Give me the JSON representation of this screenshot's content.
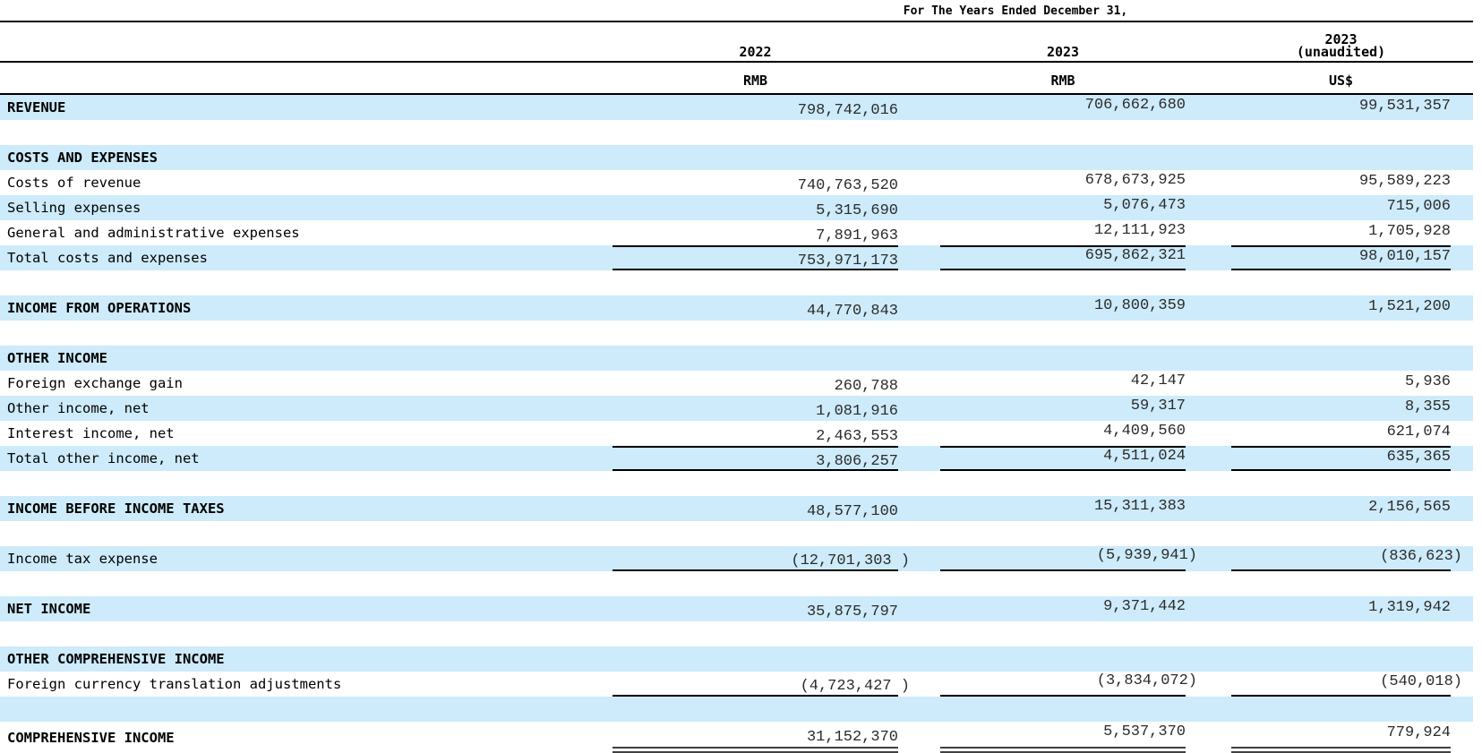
{
  "header": {
    "period_title": "For The Years Ended December 31,",
    "columns": [
      {
        "year": "2022",
        "year_note": "",
        "currency": "RMB"
      },
      {
        "year": "2023",
        "year_note": "",
        "currency": "RMB"
      },
      {
        "year": "2023",
        "year_note": "(unaudited)",
        "currency": "US$"
      }
    ]
  },
  "colors": {
    "band_blue": "#CDEBFA",
    "rule_black": "#000000",
    "double_rule_gray": "#404040"
  },
  "table": {
    "rows": [
      {
        "label": "REVENUE",
        "bold": true,
        "values": [
          "798,742,016",
          "706,662,680",
          "99,531,357"
        ]
      },
      {
        "label": "",
        "values": [
          "",
          "",
          ""
        ]
      },
      {
        "label": "COSTS AND EXPENSES",
        "bold": true,
        "values": [
          "",
          "",
          ""
        ]
      },
      {
        "label": "Costs of revenue",
        "values": [
          "740,763,520",
          "678,673,925",
          "95,589,223"
        ]
      },
      {
        "label": "Selling expenses",
        "values": [
          "5,315,690",
          "5,076,473",
          "715,006"
        ]
      },
      {
        "label": "General and administrative expenses",
        "values": [
          "7,891,963",
          "12,111,923",
          "1,705,928"
        ]
      },
      {
        "label": "Total costs and expenses",
        "values": [
          "753,971,173",
          "695,862,321",
          "98,010,157"
        ],
        "rules": "top-bottom"
      },
      {
        "label": "",
        "values": [
          "",
          "",
          ""
        ]
      },
      {
        "label": "INCOME FROM OPERATIONS",
        "bold": true,
        "values": [
          "44,770,843",
          "10,800,359",
          "1,521,200"
        ]
      },
      {
        "label": "",
        "values": [
          "",
          "",
          ""
        ]
      },
      {
        "label": "OTHER INCOME",
        "bold": true,
        "values": [
          "",
          "",
          ""
        ]
      },
      {
        "label": "Foreign exchange gain",
        "values": [
          "260,788",
          "42,147",
          "5,936"
        ]
      },
      {
        "label": "Other income, net",
        "values": [
          "1,081,916",
          "59,317",
          "8,355"
        ]
      },
      {
        "label": "Interest income, net",
        "values": [
          "2,463,553",
          "4,409,560",
          "621,074"
        ]
      },
      {
        "label": "Total other income, net",
        "values": [
          "3,806,257",
          "4,511,024",
          "635,365"
        ],
        "rules": "top-bottom"
      },
      {
        "label": "",
        "values": [
          "",
          "",
          ""
        ]
      },
      {
        "label": "INCOME BEFORE INCOME TAXES",
        "bold": true,
        "values": [
          "48,577,100",
          "15,311,383",
          "2,156,565"
        ]
      },
      {
        "label": "",
        "values": [
          "",
          "",
          ""
        ]
      },
      {
        "label": "Income tax expense",
        "values": [
          "(12,701,303 )",
          "(5,939,941)",
          "(836,623)"
        ],
        "rules": "bottom"
      },
      {
        "label": "",
        "values": [
          "",
          "",
          ""
        ]
      },
      {
        "label": "NET INCOME",
        "bold": true,
        "values": [
          "35,875,797",
          "9,371,442",
          "1,319,942"
        ]
      },
      {
        "label": "",
        "values": [
          "",
          "",
          ""
        ]
      },
      {
        "label": "OTHER COMPREHENSIVE INCOME",
        "bold": true,
        "values": [
          "",
          "",
          ""
        ]
      },
      {
        "label": "Foreign currency translation adjustments",
        "values": [
          "(4,723,427 )",
          "(3,834,072)",
          "(540,018)"
        ],
        "rules": "bottom"
      },
      {
        "label": "",
        "values": [
          "",
          "",
          ""
        ]
      },
      {
        "label": "COMPREHENSIVE INCOME",
        "bold": true,
        "values": [
          "31,152,370",
          "5,537,370",
          "779,924"
        ],
        "rules": "double"
      }
    ]
  }
}
